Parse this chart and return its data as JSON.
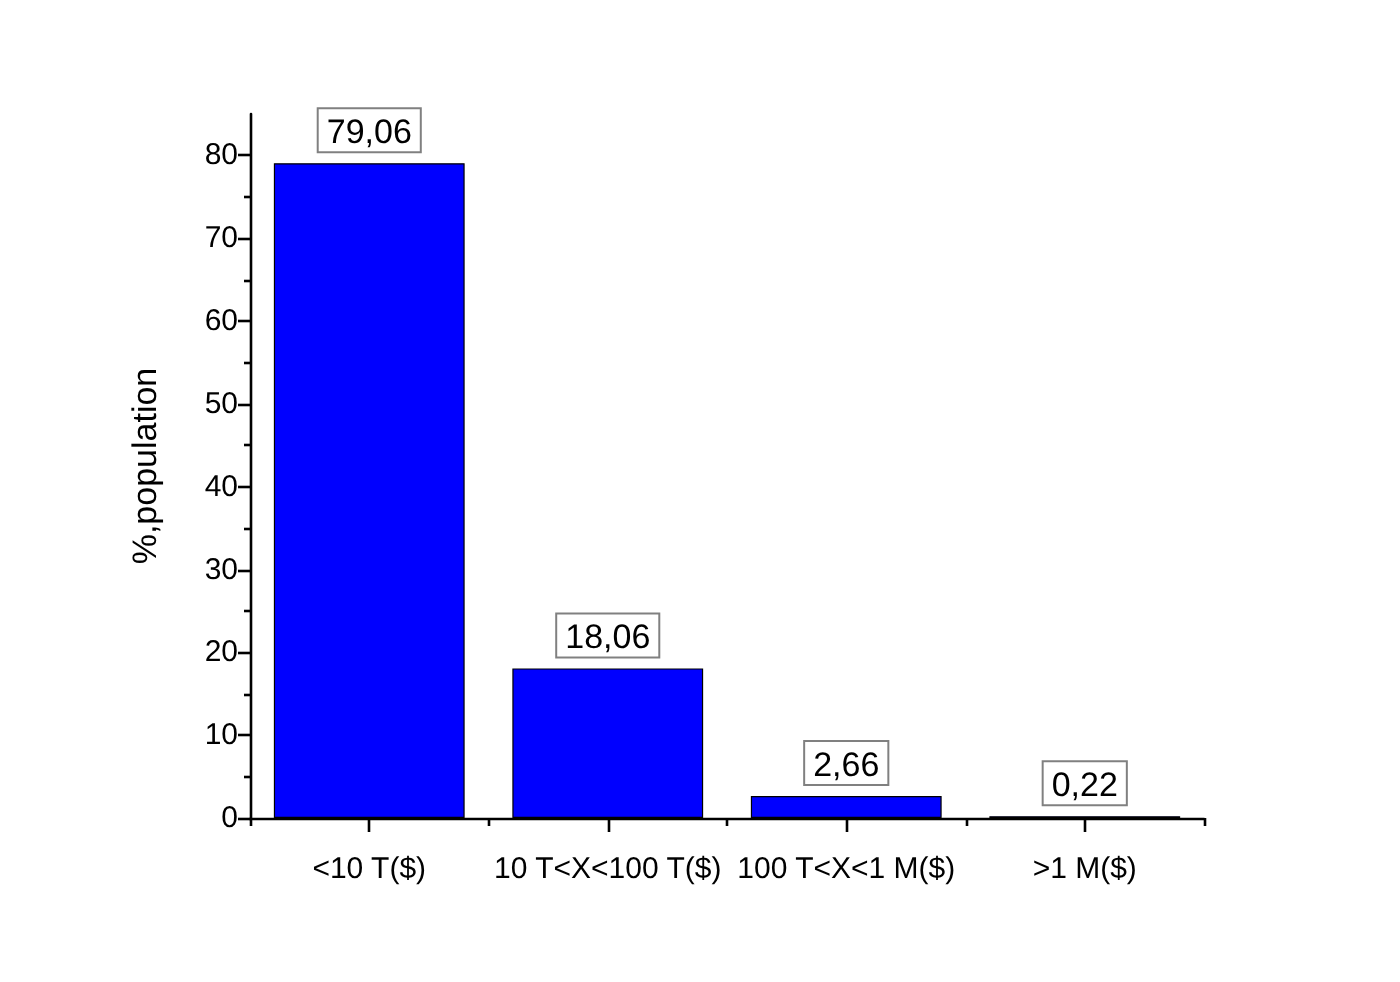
{
  "chart_data": {
    "type": "bar",
    "ylabel": "%,population",
    "categories": [
      "<10 T($)",
      "10 T<X<100 T($)",
      "100 T<X<1 M($)",
      ">1 M($)"
    ],
    "values": [
      79.06,
      18.06,
      2.66,
      0.22
    ],
    "color": "#0000ff",
    "value_labels": [
      "79,06",
      "18,06",
      "2,66",
      "0,22"
    ],
    "ylim": [
      0,
      85
    ],
    "yticks": [
      0,
      {
        "value": 5,
        "label": null
      },
      10,
      {
        "value": 15,
        "label": null
      },
      20,
      {
        "value": 25,
        "label": null
      },
      30,
      {
        "value": 35,
        "label": null
      },
      40,
      {
        "value": 45,
        "label": null
      },
      50,
      {
        "value": 55,
        "label": null
      },
      60,
      {
        "value": 65,
        "label": null
      },
      70,
      {
        "value": 75,
        "label": null
      },
      80
    ],
    "grid": false
  }
}
